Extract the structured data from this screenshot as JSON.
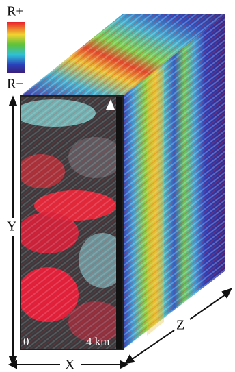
{
  "colorbar": {
    "top_label": "R+",
    "bottom_label": "R−"
  },
  "axes": {
    "y": "Y",
    "x": "X",
    "z": "Z"
  },
  "scale": {
    "start": "0",
    "end": "4 km"
  }
}
